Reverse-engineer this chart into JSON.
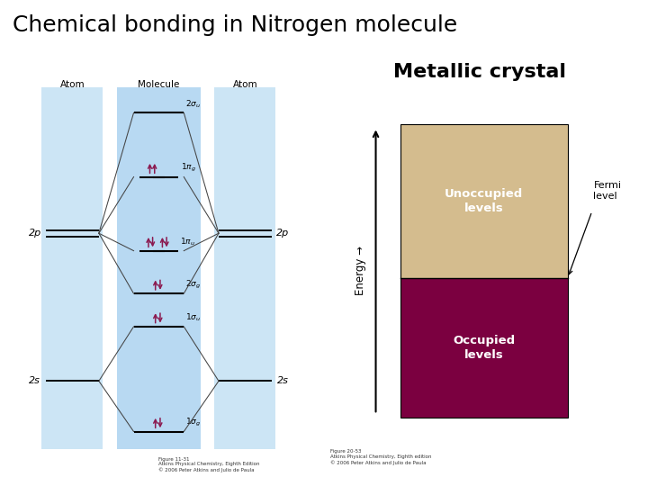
{
  "title": "Chemical bonding in Nitrogen molecule",
  "title_fontsize": 18,
  "title_bold": false,
  "subtitle_metallic": "Metallic crystal",
  "subtitle_fontsize": 16,
  "subtitle_bold": true,
  "bg_color": "#ffffff",
  "left_atom_bg": "#cce5f5",
  "molecule_bg": "#b8d9f2",
  "occupied_color": "#7b0040",
  "unoccupied_color": "#d4bc8e",
  "energy_label": "Energy →",
  "fermi_label": "Fermi\nlevel",
  "unoccupied_label": "Unoccupied\nlevels",
  "occupied_label": "Occupied\nlevels",
  "atom_label_left": "Atom",
  "molecule_label": "Molecule",
  "atom_label_right": "Atom",
  "arrow_color": "#8b1a50",
  "caption_left": "Figure 11-31\nAtkins Physical Chemistry, Eighth Edition\n© 2006 Peter Atkins and Julio de Paula",
  "caption_right": "Figure 20-53\nAtkins Physical Chemistry, Eighth edition\n© 2006 Peter Atkins and Julio de Paula"
}
